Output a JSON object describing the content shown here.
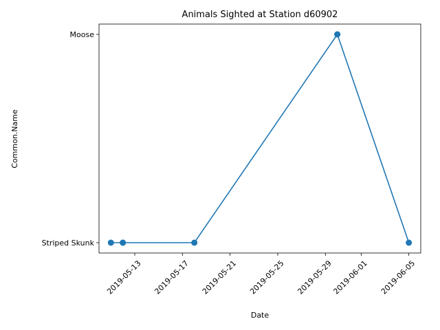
{
  "chart_data": {
    "type": "line",
    "title": "Animals Sighted at Station d60902",
    "xlabel": "Date",
    "ylabel": "Common.Name",
    "y_categories": [
      "Striped Skunk",
      "Moose"
    ],
    "x_ticks": [
      "2019-05-13",
      "2019-05-17",
      "2019-05-21",
      "2019-05-25",
      "2019-05-29",
      "2019-06-01",
      "2019-06-05"
    ],
    "xlim": [
      "2019-05-10",
      "2019-06-06"
    ],
    "series": [
      {
        "color": "#1f77b4",
        "points": [
          {
            "x": "2019-05-11",
            "y": "Striped Skunk"
          },
          {
            "x": "2019-05-12",
            "y": "Striped Skunk"
          },
          {
            "x": "2019-05-12",
            "y": "Striped Skunk"
          },
          {
            "x": "2019-05-18",
            "y": "Striped Skunk"
          },
          {
            "x": "2019-05-30",
            "y": "Moose"
          },
          {
            "x": "2019-05-30",
            "y": "Moose"
          },
          {
            "x": "2019-06-05",
            "y": "Striped Skunk"
          }
        ]
      }
    ],
    "grid": false,
    "legend": "none"
  }
}
